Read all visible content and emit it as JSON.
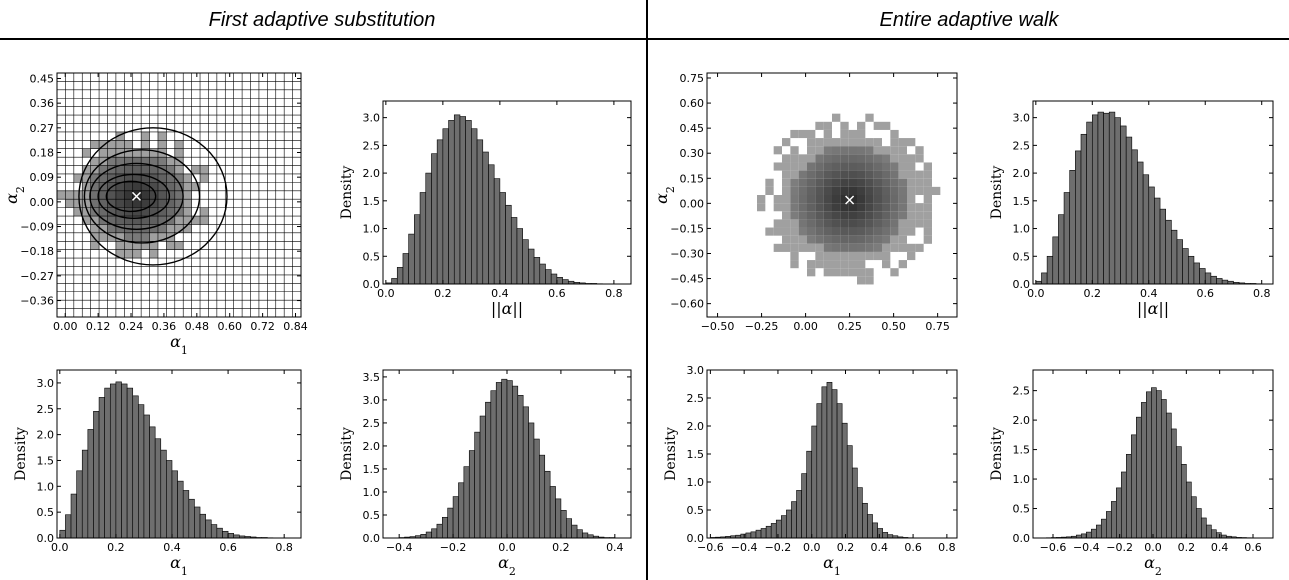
{
  "sections": [
    {
      "title": "First adaptive substitution"
    },
    {
      "title": "Entire adaptive walk"
    }
  ],
  "colors": {
    "bar": "#6e6e6e",
    "grid_light": "#a0a0a0",
    "grid_dark": "#2f2f2f",
    "line": "#000000"
  },
  "chart_data": [
    {
      "type": "heatmap",
      "section": "First adaptive substitution",
      "xlabel": "α1",
      "ylabel": "α2",
      "xlim": [
        -0.03,
        0.86
      ],
      "ylim": [
        -0.42,
        0.47
      ],
      "xticks": [
        0.0,
        0.12,
        0.24,
        0.36,
        0.48,
        0.6,
        0.72,
        0.84
      ],
      "xtick_labels": [
        "0.00",
        "0.12",
        "0.24",
        "0.36",
        "0.48",
        "0.60",
        "0.72",
        "0.84"
      ],
      "yticks": [
        -0.36,
        -0.27,
        -0.18,
        -0.09,
        0.0,
        0.09,
        0.18,
        0.27,
        0.36,
        0.45
      ],
      "ytick_labels": [
        "−0.36",
        "−0.27",
        "−0.18",
        "−0.09",
        "0.00",
        "0.09",
        "0.18",
        "0.27",
        "0.36",
        "0.45"
      ],
      "center": [
        0.26,
        0.02
      ],
      "spread": [
        0.3,
        0.26
      ],
      "bins": 29,
      "contours": [
        {
          "cx": 0.32,
          "cy": 0.02,
          "rx": 0.27,
          "ry": 0.25
        },
        {
          "cx": 0.28,
          "cy": 0.02,
          "rx": 0.21,
          "ry": 0.17
        },
        {
          "cx": 0.26,
          "cy": 0.02,
          "rx": 0.17,
          "ry": 0.12
        },
        {
          "cx": 0.25,
          "cy": 0.02,
          "rx": 0.13,
          "ry": 0.08
        },
        {
          "cx": 0.24,
          "cy": 0.02,
          "rx": 0.09,
          "ry": 0.055
        }
      ],
      "marker": [
        0.26,
        0.02
      ]
    },
    {
      "type": "bar",
      "section": "First adaptive substitution",
      "xlabel": "||α||",
      "ylabel": "Density",
      "xlim": [
        -0.01,
        0.86
      ],
      "ylim": [
        0,
        3.3
      ],
      "xticks": [
        0.0,
        0.2,
        0.4,
        0.6,
        0.8
      ],
      "xtick_labels": [
        "0.0",
        "0.2",
        "0.4",
        "0.6",
        "0.8"
      ],
      "yticks": [
        0.0,
        0.5,
        1.0,
        1.5,
        2.0,
        2.5,
        3.0
      ],
      "ytick_labels": [
        "0.0",
        "0.5",
        "1.0",
        "1.5",
        "2.0",
        "2.5",
        "3.0"
      ],
      "bin_start": 0.0,
      "bin_width": 0.02,
      "values": [
        0.02,
        0.1,
        0.3,
        0.55,
        0.9,
        1.25,
        1.65,
        2.0,
        2.35,
        2.6,
        2.8,
        2.95,
        3.05,
        3.02,
        2.95,
        2.8,
        2.6,
        2.38,
        2.15,
        1.9,
        1.65,
        1.42,
        1.2,
        1.0,
        0.8,
        0.63,
        0.48,
        0.36,
        0.26,
        0.18,
        0.12,
        0.08,
        0.05,
        0.03,
        0.02,
        0.01,
        0.01,
        0.005,
        0.003,
        0.002
      ]
    },
    {
      "type": "heatmap",
      "section": "Entire adaptive walk",
      "xlabel": "",
      "ylabel": "α2",
      "xlim": [
        -0.56,
        0.86
      ],
      "ylim": [
        -0.68,
        0.78
      ],
      "xticks": [
        -0.5,
        -0.25,
        0.0,
        0.25,
        0.5,
        0.75
      ],
      "xtick_labels": [
        "−0.50",
        "−0.25",
        "0.00",
        "0.25",
        "0.50",
        "0.75"
      ],
      "yticks": [
        -0.6,
        -0.45,
        -0.3,
        -0.15,
        0.0,
        0.15,
        0.3,
        0.45,
        0.6,
        0.75
      ],
      "ytick_labels": [
        "−0.60",
        "−0.45",
        "−0.30",
        "−0.15",
        "0.00",
        "0.15",
        "0.30",
        "0.45",
        "0.60",
        "0.75"
      ],
      "center": [
        0.25,
        0.02
      ],
      "spread": [
        0.55,
        0.55
      ],
      "bins": 30,
      "contours": [],
      "marker": [
        0.25,
        0.02
      ]
    },
    {
      "type": "bar",
      "section": "Entire adaptive walk",
      "xlabel": "||α||",
      "ylabel": "Density",
      "xlim": [
        -0.01,
        0.84
      ],
      "ylim": [
        0,
        3.3
      ],
      "xticks": [
        0.0,
        0.2,
        0.4,
        0.6,
        0.8
      ],
      "xtick_labels": [
        "0.0",
        "0.2",
        "0.4",
        "0.6",
        "0.8"
      ],
      "yticks": [
        0.0,
        0.5,
        1.0,
        1.5,
        2.0,
        2.5,
        3.0
      ],
      "ytick_labels": [
        "0.0",
        "0.5",
        "1.0",
        "1.5",
        "2.0",
        "2.5",
        "3.0"
      ],
      "bin_start": 0.0,
      "bin_width": 0.02,
      "values": [
        0.05,
        0.2,
        0.5,
        0.85,
        1.25,
        1.65,
        2.05,
        2.4,
        2.7,
        2.92,
        3.05,
        3.1,
        3.08,
        3.1,
        3.0,
        2.85,
        2.65,
        2.42,
        2.2,
        1.97,
        1.75,
        1.55,
        1.35,
        1.15,
        0.97,
        0.8,
        0.64,
        0.5,
        0.38,
        0.28,
        0.2,
        0.14,
        0.1,
        0.07,
        0.05,
        0.03,
        0.02,
        0.01,
        0.01,
        0.005
      ]
    },
    {
      "type": "bar",
      "section": "First adaptive substitution",
      "xlabel": "α1",
      "ylabel": "Density",
      "xlim": [
        -0.01,
        0.86
      ],
      "ylim": [
        0,
        3.25
      ],
      "xticks": [
        0.0,
        0.2,
        0.4,
        0.6,
        0.8
      ],
      "xtick_labels": [
        "0.0",
        "0.2",
        "0.4",
        "0.6",
        "0.8"
      ],
      "yticks": [
        0.0,
        0.5,
        1.0,
        1.5,
        2.0,
        2.5,
        3.0
      ],
      "ytick_labels": [
        "0.0",
        "0.5",
        "1.0",
        "1.5",
        "2.0",
        "2.5",
        "3.0"
      ],
      "bin_start": 0.0,
      "bin_width": 0.02,
      "values": [
        0.15,
        0.45,
        0.85,
        1.3,
        1.7,
        2.1,
        2.45,
        2.72,
        2.9,
        2.98,
        3.02,
        2.98,
        2.9,
        2.75,
        2.58,
        2.38,
        2.15,
        1.92,
        1.7,
        1.5,
        1.3,
        1.1,
        0.92,
        0.75,
        0.6,
        0.46,
        0.35,
        0.26,
        0.19,
        0.13,
        0.09,
        0.06,
        0.04,
        0.03,
        0.02,
        0.01,
        0.01,
        0.005,
        0.003,
        0.002
      ]
    },
    {
      "type": "bar",
      "section": "First adaptive substitution",
      "xlabel": "α2",
      "ylabel": "Density",
      "xlim": [
        -0.46,
        0.46
      ],
      "ylim": [
        0,
        3.65
      ],
      "xticks": [
        -0.4,
        -0.2,
        0.0,
        0.2,
        0.4
      ],
      "xtick_labels": [
        "−0.4",
        "−0.2",
        "0.0",
        "0.2",
        "0.4"
      ],
      "yticks": [
        0.0,
        0.5,
        1.0,
        1.5,
        2.0,
        2.5,
        3.0,
        3.5
      ],
      "ytick_labels": [
        "0.0",
        "0.5",
        "1.0",
        "1.5",
        "2.0",
        "2.5",
        "3.0",
        "3.5"
      ],
      "bin_start": -0.4,
      "bin_width": 0.02,
      "values": [
        0.01,
        0.02,
        0.03,
        0.05,
        0.08,
        0.13,
        0.2,
        0.3,
        0.45,
        0.65,
        0.9,
        1.2,
        1.55,
        1.9,
        2.3,
        2.65,
        2.95,
        3.2,
        3.38,
        3.45,
        3.42,
        3.3,
        3.1,
        2.85,
        2.5,
        2.15,
        1.8,
        1.45,
        1.12,
        0.85,
        0.6,
        0.42,
        0.28,
        0.18,
        0.11,
        0.07,
        0.04,
        0.02,
        0.01,
        0.01
      ]
    },
    {
      "type": "bar",
      "section": "Entire adaptive walk",
      "xlabel": "α1",
      "ylabel": "Density",
      "xlim": [
        -0.62,
        0.86
      ],
      "ylim": [
        0,
        3.0
      ],
      "xticks": [
        -0.6,
        -0.4,
        -0.2,
        0.0,
        0.2,
        0.4,
        0.6,
        0.8
      ],
      "xtick_labels": [
        "−0.6",
        "−0.4",
        "−0.2",
        "0.0",
        "0.2",
        "0.4",
        "0.6",
        "0.8"
      ],
      "yticks": [
        0.0,
        0.5,
        1.0,
        1.5,
        2.0,
        2.5,
        3.0
      ],
      "ytick_labels": [
        "0.0",
        "0.5",
        "1.0",
        "1.5",
        "2.0",
        "2.5",
        "3.0"
      ],
      "bin_start": -0.6,
      "bin_width": 0.03,
      "values": [
        0.01,
        0.015,
        0.02,
        0.03,
        0.04,
        0.05,
        0.07,
        0.09,
        0.11,
        0.14,
        0.17,
        0.21,
        0.26,
        0.32,
        0.4,
        0.5,
        0.65,
        0.85,
        1.15,
        1.55,
        2.0,
        2.4,
        2.7,
        2.78,
        2.65,
        2.4,
        2.05,
        1.65,
        1.25,
        0.9,
        0.62,
        0.42,
        0.27,
        0.17,
        0.1,
        0.06,
        0.04,
        0.02,
        0.01,
        0.005,
        0.003,
        0.002,
        0.001,
        0.001,
        0.001,
        0.001,
        0.001,
        0.001
      ]
    },
    {
      "type": "bar",
      "section": "Entire adaptive walk",
      "xlabel": "α2",
      "ylabel": "Density",
      "xlim": [
        -0.72,
        0.72
      ],
      "ylim": [
        0,
        2.85
      ],
      "xticks": [
        -0.6,
        -0.4,
        -0.2,
        0.0,
        0.2,
        0.4,
        0.6
      ],
      "xtick_labels": [
        "−0.6",
        "−0.4",
        "−0.2",
        "0.0",
        "0.2",
        "0.4",
        "0.6"
      ],
      "yticks": [
        0.0,
        0.5,
        1.0,
        1.5,
        2.0,
        2.5
      ],
      "ytick_labels": [
        "0.0",
        "0.5",
        "1.0",
        "1.5",
        "2.0",
        "2.5"
      ],
      "bin_start": -0.7,
      "bin_width": 0.03,
      "values": [
        0.002,
        0.003,
        0.005,
        0.008,
        0.01,
        0.015,
        0.02,
        0.03,
        0.05,
        0.07,
        0.1,
        0.15,
        0.22,
        0.32,
        0.45,
        0.62,
        0.85,
        1.12,
        1.42,
        1.75,
        2.05,
        2.3,
        2.48,
        2.55,
        2.5,
        2.35,
        2.12,
        1.85,
        1.55,
        1.25,
        0.95,
        0.7,
        0.5,
        0.34,
        0.22,
        0.14,
        0.09,
        0.05,
        0.03,
        0.02,
        0.01,
        0.008,
        0.005,
        0.003,
        0.002,
        0.002,
        0.001
      ]
    }
  ]
}
